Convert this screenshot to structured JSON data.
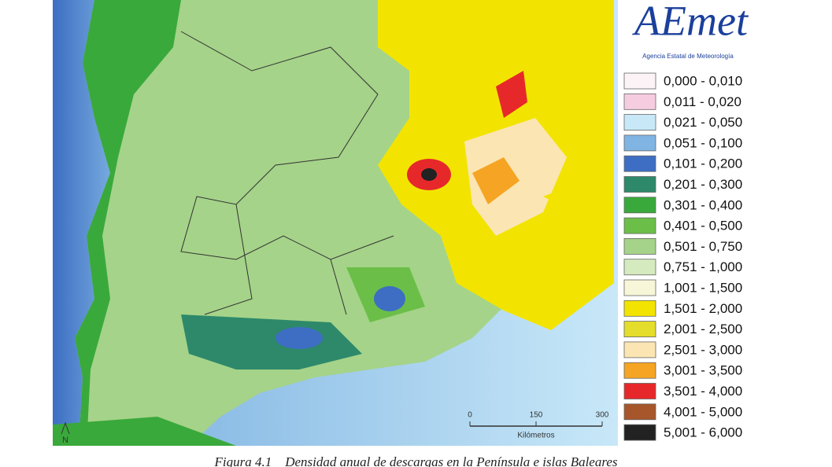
{
  "logo": {
    "name": "AEmet",
    "subtitle": "Agencia Estatal de Meteorología"
  },
  "legend": {
    "items": [
      {
        "label": "0,000 - 0,010",
        "color": "#fbf3f6"
      },
      {
        "label": "0,011 - 0,020",
        "color": "#f6cde0"
      },
      {
        "label": "0,021 - 0,050",
        "color": "#c8e8f8"
      },
      {
        "label": "0,051 - 0,100",
        "color": "#80b4e2"
      },
      {
        "label": "0,101 - 0,200",
        "color": "#3d6ec3"
      },
      {
        "label": "0,201 - 0,300",
        "color": "#2d896a"
      },
      {
        "label": "0,301 - 0,400",
        "color": "#39a93b"
      },
      {
        "label": "0,401 - 0,500",
        "color": "#6bbf48"
      },
      {
        "label": "0,501 - 0,750",
        "color": "#a5d389"
      },
      {
        "label": "0,751 - 1,000",
        "color": "#d5eabf"
      },
      {
        "label": "1,001 - 1,500",
        "color": "#f8f6d8"
      },
      {
        "label": "1,501 - 2,000",
        "color": "#f2e400"
      },
      {
        "label": "2,001 - 2,500",
        "color": "#e5dd2b"
      },
      {
        "label": "2,501 - 3,000",
        "color": "#fbe5b3"
      },
      {
        "label": "3,001 - 3,500",
        "color": "#f5a523"
      },
      {
        "label": "3,501 - 4,000",
        "color": "#e7282a"
      },
      {
        "label": "4,001 - 5,000",
        "color": "#a6562a"
      },
      {
        "label": "5,001 - 6,000",
        "color": "#222222"
      }
    ]
  },
  "scale_bar": {
    "ticks": [
      "0",
      "150",
      "300"
    ],
    "unit": "Kilómetros"
  },
  "north": "N",
  "caption": "Figura 4.1    Densidad anual de descargas en la Península e islas Baleares"
}
